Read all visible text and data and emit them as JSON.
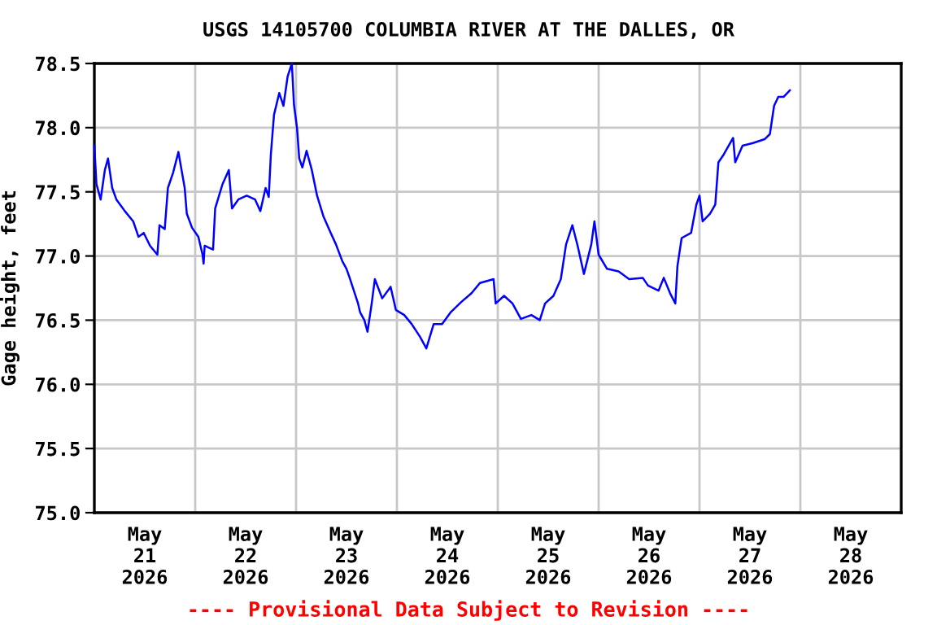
{
  "chart_data": {
    "type": "line",
    "title": "USGS 14105700 COLUMBIA RIVER AT THE DALLES, OR",
    "ylabel": "Gage height, feet",
    "annotations": [
      "---- Provisional Data Subject to Revision ----"
    ],
    "x": [
      "2026-05-21T00:00",
      "2026-05-21T00:30",
      "2026-05-21T01:30",
      "2026-05-21T02:30",
      "2026-05-21T03:15",
      "2026-05-21T04:15",
      "2026-05-21T05:15",
      "2026-05-21T07:15",
      "2026-05-21T09:15",
      "2026-05-21T10:30",
      "2026-05-21T11:45",
      "2026-05-21T13:15",
      "2026-05-21T15:00",
      "2026-05-21T15:30",
      "2026-05-21T16:45",
      "2026-05-21T17:30",
      "2026-05-21T18:45",
      "2026-05-21T20:00",
      "2026-05-21T20:45",
      "2026-05-21T21:30",
      "2026-05-21T22:00",
      "2026-05-21T23:15",
      "2026-05-22T00:45",
      "2026-05-22T01:45",
      "2026-05-22T02:00",
      "2026-05-22T02:15",
      "2026-05-22T04:15",
      "2026-05-22T04:45",
      "2026-05-22T06:30",
      "2026-05-22T08:00",
      "2026-05-22T08:45",
      "2026-05-22T10:15",
      "2026-05-22T12:15",
      "2026-05-22T14:15",
      "2026-05-22T15:30",
      "2026-05-22T16:45",
      "2026-05-22T17:30",
      "2026-05-22T18:00",
      "2026-05-22T18:45",
      "2026-05-22T20:00",
      "2026-05-22T21:00",
      "2026-05-22T22:00",
      "2026-05-22T23:00",
      "2026-05-22T23:30",
      "2026-05-23T00:15",
      "2026-05-23T00:45",
      "2026-05-23T01:30",
      "2026-05-23T02:30",
      "2026-05-23T03:45",
      "2026-05-23T05:00",
      "2026-05-23T06:30",
      "2026-05-23T08:15",
      "2026-05-23T09:30",
      "2026-05-23T11:00",
      "2026-05-23T12:00",
      "2026-05-23T12:45",
      "2026-05-23T14:45",
      "2026-05-23T15:15",
      "2026-05-23T16:15",
      "2026-05-23T17:00",
      "2026-05-23T18:00",
      "2026-05-23T18:45",
      "2026-05-23T20:30",
      "2026-05-23T22:30",
      "2026-05-23T23:45",
      "2026-05-24T01:45",
      "2026-05-24T03:30",
      "2026-05-24T05:30",
      "2026-05-24T07:00",
      "2026-05-24T08:45",
      "2026-05-24T10:45",
      "2026-05-24T12:45",
      "2026-05-24T15:15",
      "2026-05-24T17:45",
      "2026-05-24T19:45",
      "2026-05-24T23:00",
      "2026-05-24T23:30",
      "2026-05-25T01:30",
      "2026-05-25T03:30",
      "2026-05-25T05:30",
      "2026-05-25T08:00",
      "2026-05-25T10:00",
      "2026-05-25T11:15",
      "2026-05-25T13:15",
      "2026-05-25T15:00",
      "2026-05-25T16:15",
      "2026-05-25T17:45",
      "2026-05-25T19:00",
      "2026-05-25T20:30",
      "2026-05-25T22:15",
      "2026-05-25T23:00",
      "2026-05-26T00:00",
      "2026-05-26T02:00",
      "2026-05-26T04:45",
      "2026-05-26T07:15",
      "2026-05-26T10:30",
      "2026-05-26T11:45",
      "2026-05-26T14:15",
      "2026-05-26T15:30",
      "2026-05-26T17:00",
      "2026-05-26T18:15",
      "2026-05-26T18:45",
      "2026-05-26T19:45",
      "2026-05-26T22:00",
      "2026-05-26T23:15",
      "2026-05-27T00:00",
      "2026-05-27T00:45",
      "2026-05-27T02:30",
      "2026-05-27T03:45",
      "2026-05-27T04:30",
      "2026-05-27T05:45",
      "2026-05-27T08:00",
      "2026-05-27T08:30",
      "2026-05-27T10:15",
      "2026-05-27T12:45",
      "2026-05-27T15:30",
      "2026-05-27T16:45",
      "2026-05-27T17:45",
      "2026-05-27T18:45",
      "2026-05-27T20:00",
      "2026-05-27T21:30"
    ],
    "series": [
      {
        "color": "#0000ff",
        "values": [
          77.86,
          77.56,
          77.44,
          77.67,
          77.76,
          77.53,
          77.44,
          77.35,
          77.27,
          77.15,
          77.18,
          77.08,
          77.01,
          77.24,
          77.21,
          77.53,
          77.65,
          77.81,
          77.67,
          77.53,
          77.33,
          77.22,
          77.15,
          77.01,
          76.94,
          77.08,
          77.05,
          77.37,
          77.56,
          77.67,
          77.37,
          77.44,
          77.47,
          77.44,
          77.35,
          77.53,
          77.46,
          77.79,
          78.1,
          78.27,
          78.17,
          78.4,
          78.5,
          78.18,
          77.99,
          77.76,
          77.69,
          77.82,
          77.67,
          77.47,
          77.31,
          77.18,
          77.09,
          76.96,
          76.9,
          76.83,
          76.63,
          76.56,
          76.5,
          76.41,
          76.63,
          76.82,
          76.67,
          76.76,
          76.58,
          76.54,
          76.47,
          76.37,
          76.28,
          76.47,
          76.47,
          76.56,
          76.64,
          76.71,
          76.79,
          76.82,
          76.63,
          76.69,
          76.63,
          76.51,
          76.54,
          76.5,
          76.63,
          76.69,
          76.82,
          77.09,
          77.24,
          77.08,
          76.86,
          77.09,
          77.27,
          77.01,
          76.9,
          76.88,
          76.82,
          76.83,
          76.77,
          76.73,
          76.83,
          76.71,
          76.63,
          76.92,
          77.14,
          77.18,
          77.4,
          77.47,
          77.27,
          77.33,
          77.4,
          77.73,
          77.79,
          77.92,
          77.73,
          77.86,
          77.88,
          77.91,
          77.95,
          78.17,
          78.24,
          78.24,
          78.29
        ]
      }
    ],
    "xlim": [
      "2026-05-21T00:00",
      "2026-05-29T00:00"
    ],
    "xticks": [
      {
        "value": "2026-05-21T12:00",
        "label": "May\n21\n2026"
      },
      {
        "value": "2026-05-22T00:00",
        "label": null
      },
      {
        "value": "2026-05-22T12:00",
        "label": "May\n22\n2026"
      },
      {
        "value": "2026-05-23T00:00",
        "label": null
      },
      {
        "value": "2026-05-23T12:00",
        "label": "May\n23\n2026"
      },
      {
        "value": "2026-05-24T00:00",
        "label": null
      },
      {
        "value": "2026-05-24T12:00",
        "label": "May\n24\n2026"
      },
      {
        "value": "2026-05-25T00:00",
        "label": null
      },
      {
        "value": "2026-05-25T12:00",
        "label": "May\n25\n2026"
      },
      {
        "value": "2026-05-26T00:00",
        "label": null
      },
      {
        "value": "2026-05-26T12:00",
        "label": "May\n26\n2026"
      },
      {
        "value": "2026-05-27T00:00",
        "label": null
      },
      {
        "value": "2026-05-27T12:00",
        "label": "May\n27\n2026"
      },
      {
        "value": "2026-05-28T00:00",
        "label": null
      },
      {
        "value": "2026-05-28T12:00",
        "label": "May\n28\n2026"
      }
    ],
    "ylim": [
      75.0,
      78.5
    ],
    "yticks": [
      {
        "value": 75.0,
        "label": "75.0"
      },
      {
        "value": 75.5,
        "label": "75.5"
      },
      {
        "value": 76.0,
        "label": "76.0"
      },
      {
        "value": 76.5,
        "label": "76.5"
      },
      {
        "value": 77.0,
        "label": "77.0"
      },
      {
        "value": 77.5,
        "label": "77.5"
      },
      {
        "value": 78.0,
        "label": "78.0"
      },
      {
        "value": 78.5,
        "label": "78.5"
      }
    ],
    "grid": true,
    "line_style": "solid"
  }
}
